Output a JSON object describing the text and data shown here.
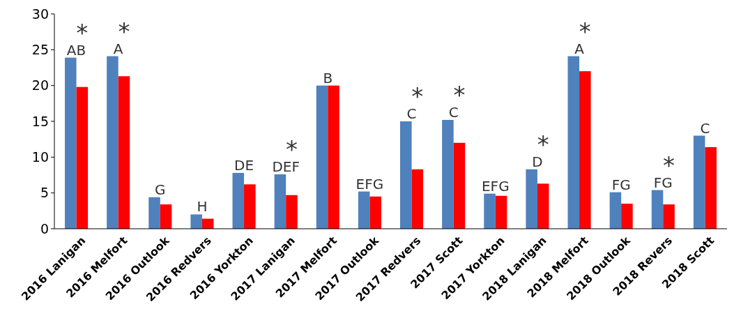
{
  "chart_data": {
    "type": "bar",
    "categories": [
      "2016 Lanigan",
      "2016 Melfort",
      "2016 Outlook",
      "2016 Redvers",
      "2016 Yorkton",
      "2017 Lanigan",
      "2017 Melfort",
      "2017 Outlook",
      "2017 Redvers",
      "2017 Scott",
      "2017 Yorkton",
      "2018 Lanigan",
      "2018 Melfort",
      "2018 Outlook",
      "2018 Revers",
      "2018 Scott"
    ],
    "series": [
      {
        "color": "#4f81bd",
        "values": [
          23.9,
          24.1,
          4.4,
          2.0,
          7.8,
          7.6,
          20.0,
          5.2,
          15.0,
          15.2,
          4.9,
          8.3,
          24.1,
          5.1,
          5.4,
          13.0
        ],
        "value_labels": [
          "AB",
          "A",
          "G",
          "H",
          "DE",
          "DEF",
          "B",
          "EFG",
          "C",
          "C",
          "EFG",
          "D",
          "A",
          "FG",
          "FG",
          "C"
        ]
      },
      {
        "color": "#ff0000",
        "values": [
          19.8,
          21.3,
          3.4,
          1.4,
          6.2,
          4.7,
          20.0,
          4.5,
          8.3,
          12.0,
          4.6,
          6.3,
          22.0,
          3.5,
          3.4,
          11.4
        ],
        "value_labels": [
          "*",
          "*",
          null,
          null,
          null,
          "*",
          null,
          null,
          "*",
          "*",
          null,
          "*",
          "*",
          null,
          "*",
          null
        ]
      }
    ],
    "ylim": [
      0,
      30
    ],
    "yticks": [
      0,
      5,
      10,
      15,
      20,
      25,
      30
    ],
    "grid": false
  }
}
